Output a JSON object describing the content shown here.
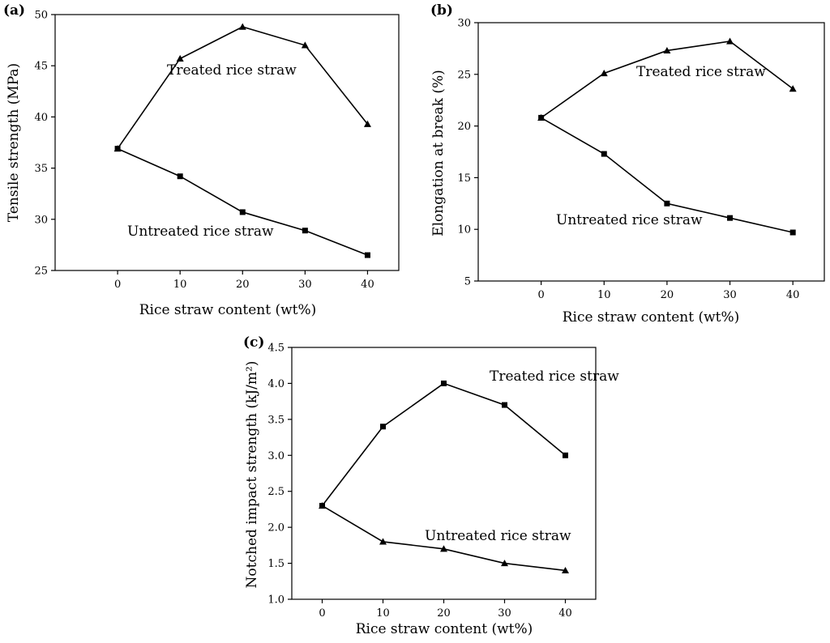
{
  "chart_data": [
    {
      "panel_label": "(a)",
      "type": "line",
      "xlabel": "Rice straw content (wt%)",
      "ylabel": "Tensile strength (MPa)",
      "xlim": [
        -10,
        45
      ],
      "ylim": [
        25,
        50
      ],
      "xticks": [
        "0",
        "10",
        "20",
        "30",
        "40"
      ],
      "yticks": [
        "25",
        "30",
        "35",
        "40",
        "45",
        "50"
      ],
      "x": [
        0,
        10,
        20,
        30,
        40
      ],
      "grid": false,
      "series": [
        {
          "name": "Treated rice straw",
          "marker": "triangle",
          "values": [
            36.9,
            45.7,
            48.8,
            47.0,
            39.3
          ]
        },
        {
          "name": "Untreated rice straw",
          "marker": "square",
          "values": [
            36.9,
            34.2,
            30.7,
            28.9,
            26.5
          ]
        }
      ]
    },
    {
      "panel_label": "(b)",
      "type": "line",
      "xlabel": "Rice straw content (wt%)",
      "ylabel": "Elongation at break (%)",
      "xlim": [
        -10,
        45
      ],
      "ylim": [
        5,
        30
      ],
      "xticks": [
        "0",
        "10",
        "20",
        "30",
        "40"
      ],
      "yticks": [
        "5",
        "10",
        "15",
        "20",
        "25",
        "30"
      ],
      "x": [
        0,
        10,
        20,
        30,
        40
      ],
      "grid": false,
      "series": [
        {
          "name": "Treated rice straw",
          "marker": "triangle",
          "values": [
            20.8,
            25.1,
            27.3,
            28.2,
            23.6
          ]
        },
        {
          "name": "Untreated rice straw",
          "marker": "square",
          "values": [
            20.8,
            17.3,
            12.5,
            11.1,
            9.7
          ]
        }
      ]
    },
    {
      "panel_label": "(c)",
      "type": "line",
      "xlabel": "Rice straw content (wt%)",
      "ylabel": "Notched impact strength (kJ/m²)",
      "xlim": [
        -5,
        45
      ],
      "ylim": [
        1.0,
        4.5
      ],
      "xticks": [
        "0",
        "10",
        "20",
        "30",
        "40"
      ],
      "yticks": [
        "1.0",
        "1.5",
        "2.0",
        "2.5",
        "3.0",
        "3.5",
        "4.0",
        "4.5"
      ],
      "x": [
        0,
        10,
        20,
        30,
        40
      ],
      "grid": false,
      "series": [
        {
          "name": "Treated rice straw",
          "marker": "square",
          "values": [
            2.3,
            3.4,
            4.0,
            3.7,
            3.0
          ]
        },
        {
          "name": "Untreated rice straw",
          "marker": "triangle",
          "values": [
            2.3,
            1.8,
            1.7,
            1.5,
            1.4
          ]
        }
      ]
    }
  ]
}
